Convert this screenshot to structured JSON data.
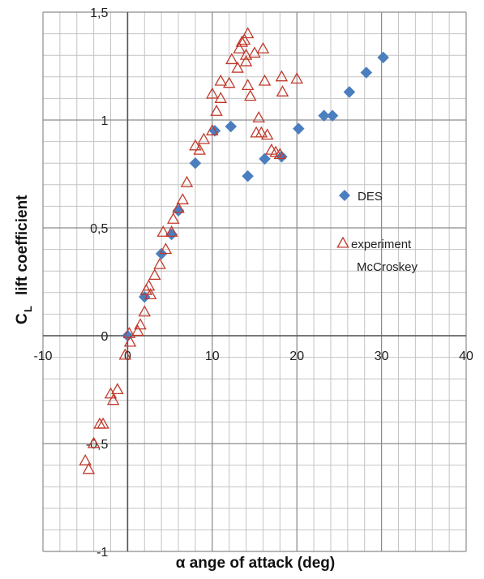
{
  "chart_data": {
    "type": "scatter",
    "xlim": [
      -10,
      40
    ],
    "ylim": [
      -1,
      1.5
    ],
    "x_ticks": [
      "-10",
      "0",
      "10",
      "20",
      "30",
      "40"
    ],
    "y_ticks": [
      "1,5",
      "1",
      "0,5",
      "0",
      "-0,5",
      "-1"
    ],
    "grid": true,
    "legend_position": "right",
    "xlabel": "α ange of attack (deg)",
    "ylabel": "C",
    "ylabel_sub": "L",
    "ylabel_rest": "lift coefficient",
    "series": [
      {
        "name": "DES",
        "marker": "diamond",
        "color": "#4a7ebf",
        "points": [
          [
            0,
            0
          ],
          [
            2,
            0.18
          ],
          [
            4,
            0.38
          ],
          [
            5.2,
            0.47
          ],
          [
            6,
            0.58
          ],
          [
            8,
            0.8
          ],
          [
            10.3,
            0.95
          ],
          [
            12.2,
            0.97
          ],
          [
            14.2,
            0.74
          ],
          [
            16.2,
            0.82
          ],
          [
            18.2,
            0.83
          ],
          [
            20.2,
            0.96
          ],
          [
            23.2,
            1.02
          ],
          [
            24.2,
            1.02
          ],
          [
            26.2,
            1.13
          ],
          [
            28.2,
            1.22
          ],
          [
            30.2,
            1.29
          ]
        ]
      },
      {
        "name": "experiment",
        "name_line2": "McCroskey",
        "marker": "triangle",
        "color": "#c0392b",
        "points": [
          [
            -5,
            -0.58
          ],
          [
            -4.6,
            -0.62
          ],
          [
            -4,
            -0.5
          ],
          [
            -3.3,
            -0.41
          ],
          [
            -2.9,
            -0.41
          ],
          [
            -2,
            -0.27
          ],
          [
            -1.7,
            -0.3
          ],
          [
            -1.2,
            -0.25
          ],
          [
            -0.3,
            -0.09
          ],
          [
            0.3,
            -0.03
          ],
          [
            0.2,
            0.01
          ],
          [
            1.2,
            0.02
          ],
          [
            1.5,
            0.05
          ],
          [
            2,
            0.11
          ],
          [
            2.2,
            0.21
          ],
          [
            2.5,
            0.23
          ],
          [
            2.7,
            0.19
          ],
          [
            3.2,
            0.28
          ],
          [
            3.8,
            0.33
          ],
          [
            4.2,
            0.48
          ],
          [
            4.5,
            0.4
          ],
          [
            5.2,
            0.48
          ],
          [
            5.4,
            0.54
          ],
          [
            6,
            0.59
          ],
          [
            6.5,
            0.63
          ],
          [
            7,
            0.71
          ],
          [
            8,
            0.88
          ],
          [
            8.5,
            0.86
          ],
          [
            9,
            0.91
          ],
          [
            10,
            0.95
          ],
          [
            10,
            1.12
          ],
          [
            10.5,
            1.04
          ],
          [
            11,
            1.1
          ],
          [
            11,
            1.18
          ],
          [
            12,
            1.17
          ],
          [
            12.3,
            1.28
          ],
          [
            13,
            1.24
          ],
          [
            13.2,
            1.33
          ],
          [
            13.5,
            1.36
          ],
          [
            13.8,
            1.37
          ],
          [
            14,
            1.3
          ],
          [
            14,
            1.27
          ],
          [
            14.2,
            1.16
          ],
          [
            14.2,
            1.4
          ],
          [
            14.5,
            1.11
          ],
          [
            15,
            1.31
          ],
          [
            15.2,
            0.94
          ],
          [
            15.5,
            1.01
          ],
          [
            15.8,
            0.94
          ],
          [
            16,
            1.33
          ],
          [
            16.2,
            1.18
          ],
          [
            16.5,
            0.93
          ],
          [
            17,
            0.86
          ],
          [
            17.5,
            0.85
          ],
          [
            18,
            0.84
          ],
          [
            18.2,
            1.2
          ],
          [
            18.3,
            1.13
          ],
          [
            20,
            1.19
          ]
        ]
      }
    ]
  }
}
